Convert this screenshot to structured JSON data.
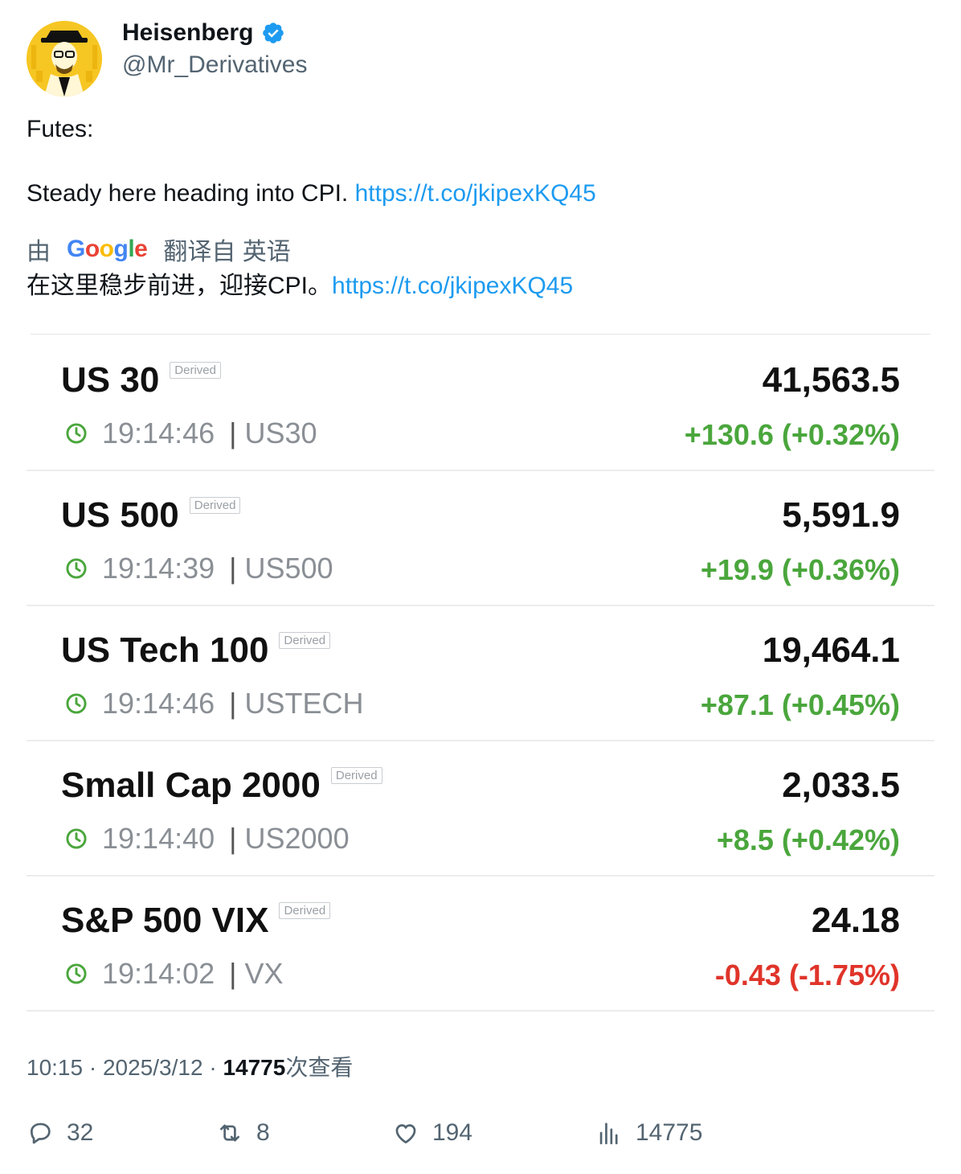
{
  "author": {
    "name": "Heisenberg",
    "handle": "@Mr_Derivatives"
  },
  "tweet": {
    "line1": "Futes:",
    "line2_text": "Steady here heading into CPI.",
    "link": "https://t.co/jkipexKQ45"
  },
  "translation": {
    "prefix": "由",
    "provider": "Google",
    "suffix": "翻译自 英语",
    "text": "在这里稳步前进，迎接CPI。",
    "link": "https://t.co/jkipexKQ45"
  },
  "quotes": [
    {
      "name": "US 30",
      "badge": "Derived",
      "time": "19:14:46",
      "symbol": "US30",
      "price": "41,563.5",
      "change": "+130.6 (+0.32%)",
      "direction": "up"
    },
    {
      "name": "US 500",
      "badge": "Derived",
      "time": "19:14:39",
      "symbol": "US500",
      "price": "5,591.9",
      "change": "+19.9 (+0.36%)",
      "direction": "up"
    },
    {
      "name": "US Tech 100",
      "badge": "Derived",
      "time": "19:14:46",
      "symbol": "USTECH",
      "price": "19,464.1",
      "change": "+87.1 (+0.45%)",
      "direction": "up"
    },
    {
      "name": "Small Cap 2000",
      "badge": "Derived",
      "time": "19:14:40",
      "symbol": "US2000",
      "price": "2,033.5",
      "change": "+8.5 (+0.42%)",
      "direction": "up"
    },
    {
      "name": "S&P 500 VIX",
      "badge": "Derived",
      "time": "19:14:02",
      "symbol": "VX",
      "price": "24.18",
      "change": "-0.43 (-1.75%)",
      "direction": "down"
    }
  ],
  "meta": {
    "time": "10:15",
    "dot": "·",
    "date": "2025/3/12",
    "views": "14775",
    "views_label": "次查看"
  },
  "actions": {
    "replies": "32",
    "retweets": "8",
    "likes": "194",
    "views": "14775"
  },
  "colors": {
    "link": "#1d9bf0",
    "up": "#4aa63c",
    "down": "#e0342a",
    "verified": "#1d9bf0"
  }
}
